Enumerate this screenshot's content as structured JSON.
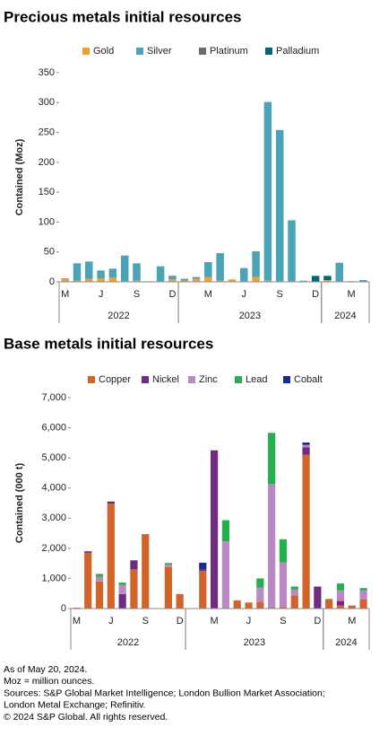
{
  "chart_data": [
    {
      "type": "bar",
      "stacked": true,
      "title": "Precious metals initial resources",
      "y_label": "Contained (Moz)",
      "categories": [
        "M",
        null,
        null,
        "J",
        null,
        null,
        "S",
        null,
        null,
        "D",
        null,
        null,
        "M",
        null,
        null,
        "J",
        null,
        null,
        "S",
        null,
        null,
        "D",
        null,
        null,
        "M",
        null
      ],
      "groups": [
        {
          "label": "2022",
          "start": 0,
          "end": 9
        },
        {
          "label": "2023",
          "start": 10,
          "end": 21
        },
        {
          "label": "2024",
          "start": 22,
          "end": 25
        }
      ],
      "ylim": [
        0,
        350
      ],
      "yticks": [
        0,
        50,
        100,
        150,
        200,
        250,
        300,
        350
      ],
      "grid": false,
      "series": [
        {
          "name": "Gold",
          "color": "#f0a030",
          "values": [
            5,
            2,
            5,
            6,
            7,
            1,
            2,
            1,
            1,
            4,
            2,
            5,
            8,
            2,
            4,
            1,
            8,
            2,
            1,
            1,
            1,
            0,
            3,
            1,
            0,
            0
          ]
        },
        {
          "name": "Silver",
          "color": "#4ba3b8",
          "values": [
            1,
            29,
            29,
            13,
            15,
            43,
            29,
            0,
            25,
            5,
            2,
            3,
            25,
            46,
            0,
            22,
            43,
            299,
            253,
            102,
            1,
            0,
            0,
            31,
            0,
            3
          ]
        },
        {
          "name": "Platinum",
          "color": "#6d6d6d",
          "values": [
            0,
            0,
            0,
            0,
            0,
            0,
            0,
            0,
            0,
            1,
            1,
            0,
            0,
            0,
            0,
            0,
            0,
            0,
            0,
            0,
            0,
            0,
            0,
            0,
            1,
            0
          ]
        },
        {
          "name": "Palladium",
          "color": "#00687a",
          "values": [
            0,
            0,
            0,
            0,
            0,
            0,
            0,
            0,
            0,
            0,
            0,
            0,
            0,
            0,
            0,
            0,
            0,
            0,
            0,
            0,
            0,
            10,
            7,
            0,
            0,
            0
          ]
        }
      ]
    },
    {
      "type": "bar",
      "stacked": true,
      "title": "Base metals initial resources",
      "y_label": "Contained (000 t)",
      "categories": [
        "M",
        null,
        null,
        "J",
        null,
        null,
        "S",
        null,
        null,
        "D",
        null,
        null,
        "M",
        null,
        null,
        "J",
        null,
        null,
        "S",
        null,
        null,
        "D",
        null,
        null,
        "M",
        null
      ],
      "groups": [
        {
          "label": "2022",
          "start": 0,
          "end": 9
        },
        {
          "label": "2023",
          "start": 10,
          "end": 21
        },
        {
          "label": "2024",
          "start": 22,
          "end": 25
        }
      ],
      "ylim": [
        0,
        7000
      ],
      "yticks": [
        0,
        {
          "value": 1000,
          "label": "1,000"
        },
        {
          "value": 2000,
          "label": "2,000"
        },
        {
          "value": 3000,
          "label": "3,000"
        },
        {
          "value": 4000,
          "label": "4,000"
        },
        {
          "value": 5000,
          "label": "5,000"
        },
        {
          "value": 6000,
          "label": "6,000"
        },
        {
          "value": 7000,
          "label": "7,000"
        }
      ],
      "grid": false,
      "series": [
        {
          "name": "Copper",
          "color": "#d2642a",
          "values": [
            30,
            1850,
            900,
            3480,
            0,
            1300,
            2470,
            0,
            1380,
            480,
            0,
            1250,
            0,
            0,
            270,
            200,
            220,
            30,
            50,
            430,
            5100,
            0,
            300,
            100,
            100,
            300
          ]
        },
        {
          "name": "Nickel",
          "color": "#6f2a82",
          "values": [
            0,
            50,
            0,
            50,
            480,
            300,
            0,
            0,
            0,
            0,
            0,
            50,
            5250,
            0,
            0,
            0,
            0,
            0,
            0,
            0,
            250,
            730,
            0,
            150,
            0,
            0
          ]
        },
        {
          "name": "Zinc",
          "color": "#bb88c6",
          "values": [
            0,
            0,
            150,
            0,
            300,
            0,
            0,
            0,
            80,
            0,
            0,
            0,
            0,
            2230,
            0,
            0,
            480,
            4100,
            1480,
            200,
            80,
            0,
            0,
            350,
            0,
            300
          ]
        },
        {
          "name": "Lead",
          "color": "#22b14c",
          "values": [
            0,
            0,
            100,
            0,
            80,
            0,
            0,
            0,
            50,
            0,
            0,
            0,
            0,
            700,
            0,
            0,
            300,
            1700,
            770,
            100,
            0,
            0,
            20,
            230,
            0,
            80
          ]
        },
        {
          "name": "Cobalt",
          "color": "#1a2b8c",
          "values": [
            0,
            0,
            0,
            20,
            0,
            0,
            0,
            0,
            0,
            0,
            0,
            220,
            0,
            0,
            0,
            0,
            0,
            0,
            0,
            0,
            80,
            0,
            0,
            0,
            0,
            0
          ]
        }
      ]
    }
  ],
  "notes": [
    "As of May 20, 2024.",
    "Moz = million ounces.",
    "Sources: S&P Global Market Intelligence; London Bullion Market Association;",
    "London Metal Exchange; Refinitiv.",
    "© 2024 S&P Global. All rights reserved."
  ]
}
